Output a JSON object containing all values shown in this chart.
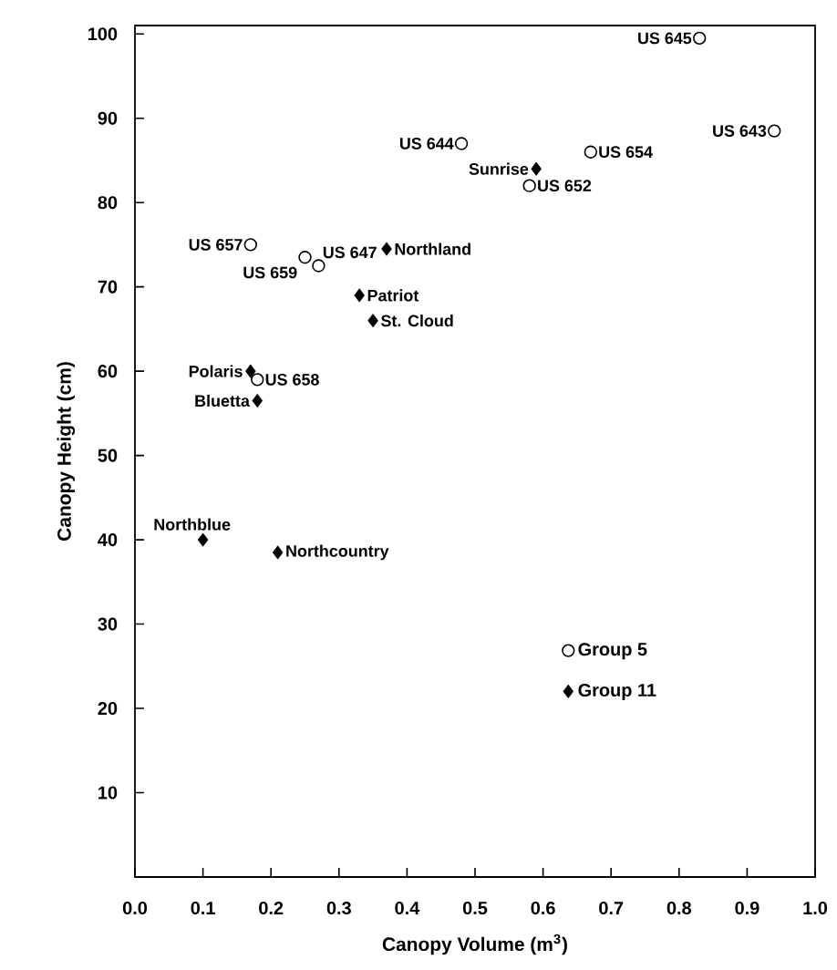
{
  "chart_data": {
    "type": "scatter",
    "xlabel": "Canopy Volume (m$^{3}$)",
    "ylabel": "Canopy Height (cm)",
    "xlim": [
      0,
      1.0
    ],
    "ylim": [
      0,
      101
    ],
    "xticks": [
      {
        "value": 0,
        "label": "0.0"
      },
      {
        "value": 0.1,
        "label": "0.1"
      },
      {
        "value": 0.2,
        "label": "0.2"
      },
      {
        "value": 0.3,
        "label": "0.3"
      },
      {
        "value": 0.4,
        "label": "0.4"
      },
      {
        "value": 0.5,
        "label": "0.5"
      },
      {
        "value": 0.6,
        "label": "0.6"
      },
      {
        "value": 0.7,
        "label": "0.7"
      },
      {
        "value": 0.8,
        "label": "0.8"
      },
      {
        "value": 0.9,
        "label": "0.9"
      },
      {
        "value": 1.0,
        "label": "1.0"
      }
    ],
    "yticks": [
      10,
      20,
      30,
      40,
      50,
      60,
      70,
      80,
      90,
      100
    ],
    "legend": "bottom right",
    "grid": false,
    "series": [
      {
        "name": "Group 5",
        "color": "#000000",
        "marker": "circle",
        "x": [
          0.83,
          0.94,
          0.48,
          0.67,
          0.58,
          0.17,
          0.25,
          0.27,
          0.18
        ],
        "values": [
          99.5,
          88.5,
          87,
          86,
          82,
          75,
          73.5,
          72.5,
          59
        ]
      },
      {
        "name": "Group 11",
        "color": "#000000",
        "marker": "diamond",
        "x": [
          0.59,
          0.37,
          0.33,
          0.35,
          0.17,
          0.18,
          0.1,
          0.21
        ],
        "values": [
          84,
          74.5,
          69,
          66,
          60,
          56.5,
          40,
          38.5
        ]
      }
    ],
    "annotations": [
      {
        "text": "US 645",
        "x": 0.83,
        "y": 99.5
      },
      {
        "text": "US 643",
        "x": 0.94,
        "y": 88.5
      },
      {
        "text": "US 644",
        "x": 0.48,
        "y": 87
      },
      {
        "text": "US 654",
        "x": 0.67,
        "y": 86
      },
      {
        "text": "Sunrise",
        "x": 0.59,
        "y": 84
      },
      {
        "text": "US 652",
        "x": 0.58,
        "y": 82
      },
      {
        "text": "US 657",
        "x": 0.17,
        "y": 75
      },
      {
        "text": "US 659",
        "x": 0.25,
        "y": 73.5
      },
      {
        "text": "US 647",
        "x": 0.27,
        "y": 72.5
      },
      {
        "text": "Northland",
        "x": 0.37,
        "y": 74.5
      },
      {
        "text": "Patriot",
        "x": 0.33,
        "y": 69
      },
      {
        "text": "St. Cloud",
        "x": 0.35,
        "y": 66
      },
      {
        "text": "Polaris",
        "x": 0.17,
        "y": 60
      },
      {
        "text": "US 658",
        "x": 0.18,
        "y": 59
      },
      {
        "text": "Bluetta",
        "x": 0.18,
        "y": 56.5
      },
      {
        "text": "Northblue",
        "x": 0.1,
        "y": 40
      },
      {
        "text": "Northcountry",
        "x": 0.21,
        "y": 38.5
      }
    ]
  }
}
